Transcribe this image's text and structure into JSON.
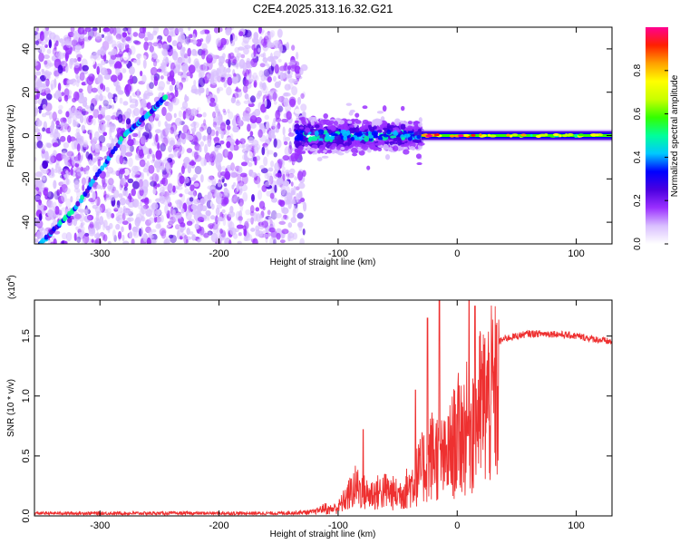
{
  "title": "C2E4.2025.313.16.32.G21",
  "chart_data": [
    {
      "type": "heatmap",
      "title": "C2E4.2025.313.16.32.G21",
      "xlabel": "Height of straight line (km)",
      "ylabel": "Frequency (Hz)",
      "xlim": [
        -355,
        130
      ],
      "ylim": [
        -50,
        50
      ],
      "xticks": [
        -300,
        -200,
        -100,
        0,
        100
      ],
      "xtick_labels": [
        "-300",
        "-200",
        "-100",
        "0",
        "100"
      ],
      "yticks": [
        -40,
        -20,
        0,
        20,
        40
      ],
      "ytick_labels": [
        "-40",
        "-20",
        "0",
        "20",
        "40"
      ],
      "colorbar": {
        "label": "Normalized spectral amplitude",
        "range": [
          0.0,
          1.0
        ],
        "ticks": [
          0.0,
          0.2,
          0.4,
          0.6,
          0.8
        ],
        "tick_labels": [
          "0.0",
          "0.2",
          "0.4",
          "0.6",
          "0.8"
        ],
        "colormap": [
          "#ffffff",
          "#d9bfff",
          "#9b30ff",
          "#4b00e0",
          "#0000ff",
          "#00c8ff",
          "#00ff9a",
          "#33ff00",
          "#c8ff00",
          "#ffff00",
          "#ffa000",
          "#ff2000",
          "#ff0090"
        ]
      },
      "features": {
        "noise_region_x": [
          -355,
          -140
        ],
        "diagonal_track": [
          [
            -350,
            -50
          ],
          [
            -320,
            -33
          ],
          [
            -280,
            0
          ],
          [
            -255,
            12
          ],
          [
            -245,
            18
          ]
        ],
        "direct_signal_band": {
          "x_range": [
            -135,
            130
          ],
          "center_hz": 0
        },
        "spread_region_x": [
          -135,
          -30
        ]
      }
    },
    {
      "type": "line",
      "xlabel": "Height of straight line (km)",
      "ylabel": "SNR (10 * v/v)",
      "y_scale_label": "(x10",
      "y_scale_exponent": "4",
      "y_scale_suffix": ")",
      "xlim": [
        -355,
        130
      ],
      "ylim": [
        0.0,
        1.8
      ],
      "xticks": [
        -300,
        -200,
        -100,
        0,
        100
      ],
      "xtick_labels": [
        "-300",
        "-200",
        "-100",
        "0",
        "100"
      ],
      "yticks": [
        0.0,
        0.5,
        1.0,
        1.5
      ],
      "ytick_labels": [
        "0.0",
        "0.5",
        "1.0",
        "1.5"
      ],
      "series": [
        {
          "name": "SNR",
          "color": "#ee3030",
          "envelope_x": [
            -355,
            -150,
            -120,
            -100,
            -85,
            -75,
            -60,
            -50,
            -40,
            -30,
            -20,
            -10,
            0,
            10,
            20,
            30,
            40,
            60,
            80,
            100,
            130
          ],
          "envelope_y": [
            0.02,
            0.02,
            0.03,
            0.1,
            0.35,
            0.25,
            0.3,
            0.25,
            0.35,
            0.55,
            0.75,
            0.65,
            0.95,
            1.05,
            1.3,
            1.42,
            1.48,
            1.52,
            1.52,
            1.5,
            1.45
          ],
          "spike_points": [
            [
              -79,
              0.72
            ],
            [
              -35,
              1.05
            ],
            [
              -25,
              1.65
            ],
            [
              -15,
              1.8
            ],
            [
              10,
              1.8
            ],
            [
              15,
              1.75
            ]
          ]
        }
      ]
    }
  ]
}
